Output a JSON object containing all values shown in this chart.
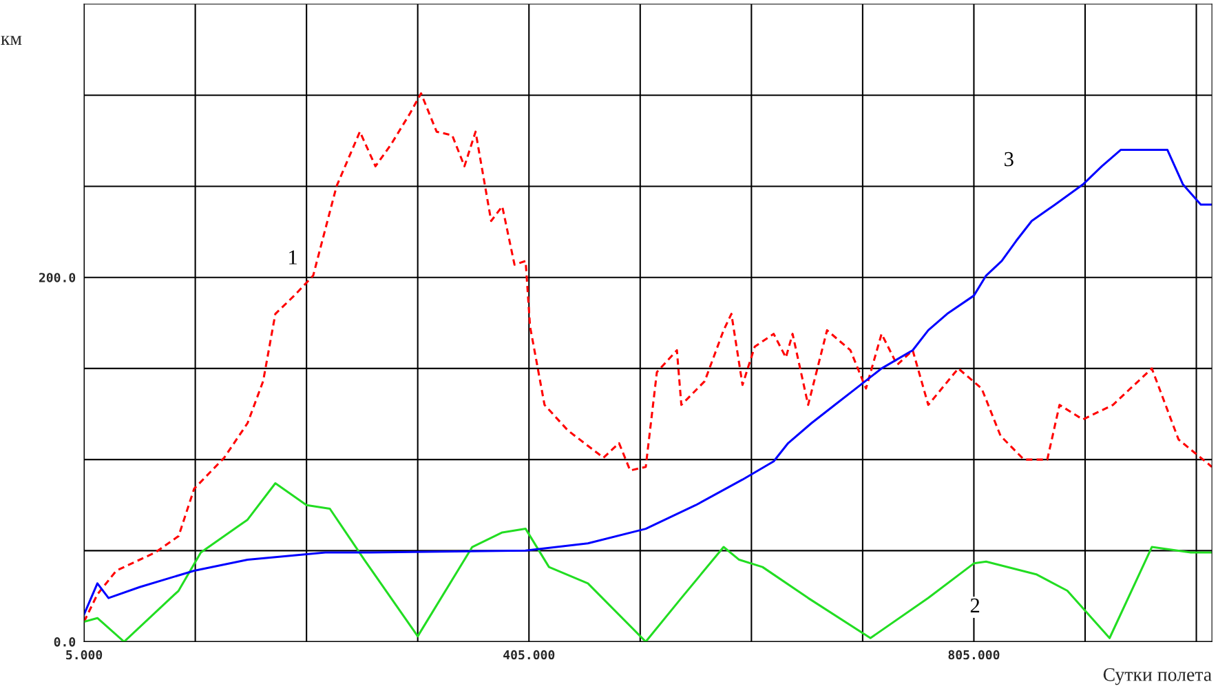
{
  "chart_data": {
    "type": "line",
    "xlabel": "Сутки полета",
    "ylabel": "км",
    "xlim": [
      5,
      1019
    ],
    "ylim": [
      0,
      350
    ],
    "xticks": [
      {
        "value": 5,
        "label": "5.000"
      },
      {
        "value": 105,
        "label": null
      },
      {
        "value": 205,
        "label": null
      },
      {
        "value": 305,
        "label": null
      },
      {
        "value": 405,
        "label": "405.000"
      },
      {
        "value": 505,
        "label": null
      },
      {
        "value": 605,
        "label": null
      },
      {
        "value": 705,
        "label": null
      },
      {
        "value": 805,
        "label": "805.000"
      },
      {
        "value": 905,
        "label": null
      },
      {
        "value": 1005,
        "label": null
      }
    ],
    "yticks": [
      {
        "value": 0,
        "label": "0.0"
      },
      {
        "value": 50,
        "label": null
      },
      {
        "value": 100,
        "label": null
      },
      {
        "value": 150,
        "label": null
      },
      {
        "value": 200,
        "label": "200.0"
      },
      {
        "value": 250,
        "label": null
      },
      {
        "value": 300,
        "label": null
      }
    ],
    "grid": true,
    "legend": false,
    "marker": "none",
    "series": [
      {
        "name": "1",
        "color": "#ff0000",
        "line_style": "dashed",
        "x": [
          5,
          17,
          34,
          69,
          90,
          104,
          131,
          152,
          166,
          177,
          194,
          211,
          232,
          253,
          267,
          281,
          298,
          308,
          322,
          336,
          347,
          357,
          371,
          381,
          392,
          402,
          406,
          419,
          440,
          472,
          486,
          496,
          510,
          520,
          538,
          542,
          563,
          580,
          587,
          597,
          608,
          625,
          636,
          642,
          656,
          673,
          694,
          708,
          722,
          736,
          750,
          764,
          791,
          812,
          829,
          850,
          871,
          882,
          903,
          930,
          965,
          989,
          1019
        ],
        "values": [
          11,
          26,
          39,
          49,
          58,
          84,
          101,
          120,
          143,
          180,
          190,
          201,
          250,
          280,
          261,
          273,
          290,
          301,
          280,
          278,
          261,
          280,
          231,
          239,
          207,
          209,
          173,
          130,
          116,
          101,
          109,
          94,
          96,
          148,
          160,
          130,
          143,
          171,
          180,
          141,
          162,
          169,
          156,
          169,
          130,
          171,
          160,
          139,
          169,
          152,
          160,
          130,
          150,
          139,
          113,
          100,
          100,
          130,
          122,
          130,
          150,
          111,
          96
        ]
      },
      {
        "name": "2",
        "color": "#22dd22",
        "line_style": "solid",
        "x": [
          5,
          17,
          41,
          90,
          110,
          152,
          177,
          205,
          226,
          257,
          305,
          354,
          381,
          402,
          423,
          458,
          510,
          542,
          580,
          594,
          615,
          656,
          712,
          764,
          805,
          816,
          861,
          889,
          927,
          965,
          1000,
          1019
        ],
        "values": [
          11,
          13,
          0,
          28,
          49,
          67,
          87,
          75,
          73,
          45,
          3,
          52,
          60,
          62,
          41,
          32,
          0,
          24,
          52,
          45,
          41,
          24,
          2,
          24,
          43,
          44,
          37,
          28,
          2,
          52,
          49,
          49
        ]
      },
      {
        "name": "3",
        "color": "#0000ff",
        "line_style": "solid",
        "x": [
          5,
          17,
          27,
          55,
          104,
          152,
          222,
          263,
          402,
          458,
          510,
          555,
          597,
          625,
          638,
          659,
          680,
          701,
          722,
          750,
          764,
          781,
          805,
          816,
          830,
          843,
          857,
          878,
          903,
          920,
          937,
          979,
          993,
          1009,
          1019
        ],
        "values": [
          15,
          32,
          24,
          30,
          39,
          45,
          49,
          49,
          50,
          54,
          62,
          75,
          89,
          99,
          109,
          120,
          130,
          140,
          150,
          160,
          171,
          180,
          190,
          201,
          209,
          220,
          231,
          240,
          251,
          261,
          270,
          270,
          251,
          240,
          240
        ]
      }
    ]
  }
}
